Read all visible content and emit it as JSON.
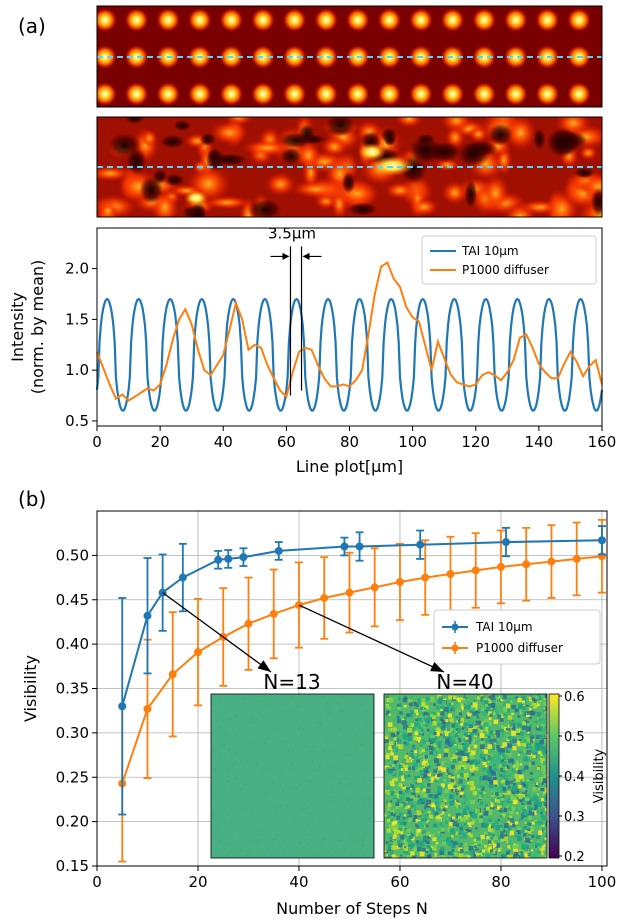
{
  "labels": {
    "a": "(a)",
    "b": "(b)"
  },
  "colors": {
    "tai": "#1f77b4",
    "diffuser": "#ff7f0e",
    "dashed_line": "#4fd8ff",
    "grid": "#b0b0b0"
  },
  "chart_data": [
    {
      "type": "heatmap",
      "panel": "a-top",
      "description_source": "TAI 10µm intensity pattern",
      "rows_of_spots": 3,
      "spots_per_row": 16,
      "colormap": "hot",
      "dashed_line": "middle row"
    },
    {
      "type": "heatmap",
      "panel": "a-middle",
      "colormap": "hot",
      "dashed_line": "middle row",
      "pattern": "random speckle"
    },
    {
      "type": "line",
      "panel": "a-bottom",
      "xlabel": "Line plot[µm]",
      "ylabel": "Intensity\n(norm. by mean)",
      "ylabel_line1": "Intensity",
      "ylabel_line2": "(norm. by mean)",
      "xlim": [
        0,
        160
      ],
      "ylim": [
        0.45,
        2.4
      ],
      "xticks": [
        0,
        20,
        40,
        60,
        80,
        100,
        120,
        140,
        160
      ],
      "yticks": [
        0.5,
        1.0,
        1.5,
        2.0
      ],
      "ytick_labels": [
        "0.5",
        "1.0",
        "1.5",
        "2.0"
      ],
      "legend_position": "top-right",
      "annotation": {
        "text": "3.5µm",
        "x1": 61.3,
        "x2": 64.8,
        "arrow_y": 2.12
      },
      "series": [
        {
          "name": "TAI 10µm",
          "color": "#1f77b4",
          "form": "periodic",
          "period": 10,
          "first_peak": 3.2,
          "peak": 1.7,
          "trough": 0.6,
          "x_range": [
            0,
            160
          ]
        },
        {
          "name": "P1000 diffuser",
          "color": "#ff7f0e",
          "points": [
            [
              0,
              1.18
            ],
            [
              2,
              1.02
            ],
            [
              4,
              0.86
            ],
            [
              6,
              0.72
            ],
            [
              8,
              0.76
            ],
            [
              10,
              0.7
            ],
            [
              12,
              0.74
            ],
            [
              14,
              0.78
            ],
            [
              16,
              0.82
            ],
            [
              18,
              0.8
            ],
            [
              20,
              0.86
            ],
            [
              22,
              1.05
            ],
            [
              24,
              1.3
            ],
            [
              26,
              1.5
            ],
            [
              28,
              1.6
            ],
            [
              30,
              1.45
            ],
            [
              32,
              1.2
            ],
            [
              34,
              1.0
            ],
            [
              36,
              0.95
            ],
            [
              38,
              1.05
            ],
            [
              40,
              1.15
            ],
            [
              42,
              1.4
            ],
            [
              44,
              1.66
            ],
            [
              46,
              1.5
            ],
            [
              48,
              1.2
            ],
            [
              50,
              1.25
            ],
            [
              52,
              1.22
            ],
            [
              54,
              1.05
            ],
            [
              56,
              0.92
            ],
            [
              58,
              0.8
            ],
            [
              60,
              0.74
            ],
            [
              62,
              0.98
            ],
            [
              64,
              1.18
            ],
            [
              66,
              1.22
            ],
            [
              68,
              1.2
            ],
            [
              70,
              1.05
            ],
            [
              72,
              0.92
            ],
            [
              74,
              0.84
            ],
            [
              76,
              0.84
            ],
            [
              78,
              0.86
            ],
            [
              80,
              0.84
            ],
            [
              82,
              0.9
            ],
            [
              84,
              1.0
            ],
            [
              86,
              1.35
            ],
            [
              88,
              1.75
            ],
            [
              90,
              2.02
            ],
            [
              92,
              2.06
            ],
            [
              94,
              1.9
            ],
            [
              96,
              1.82
            ],
            [
              98,
              1.62
            ],
            [
              100,
              1.52
            ],
            [
              102,
              1.48
            ],
            [
              104,
              1.24
            ],
            [
              106,
              1.0
            ],
            [
              108,
              1.28
            ],
            [
              110,
              1.12
            ],
            [
              112,
              0.96
            ],
            [
              114,
              0.88
            ],
            [
              116,
              0.86
            ],
            [
              118,
              0.84
            ],
            [
              120,
              0.86
            ],
            [
              122,
              0.95
            ],
            [
              124,
              0.98
            ],
            [
              126,
              0.95
            ],
            [
              128,
              0.9
            ],
            [
              130,
              0.98
            ],
            [
              132,
              1.1
            ],
            [
              134,
              1.32
            ],
            [
              136,
              1.35
            ],
            [
              138,
              1.22
            ],
            [
              140,
              1.06
            ],
            [
              142,
              0.98
            ],
            [
              144,
              0.92
            ],
            [
              146,
              0.92
            ],
            [
              148,
              1.06
            ],
            [
              150,
              1.18
            ],
            [
              152,
              1.08
            ],
            [
              154,
              0.94
            ],
            [
              156,
              1.04
            ],
            [
              158,
              1.1
            ],
            [
              160,
              0.86
            ]
          ]
        }
      ]
    },
    {
      "type": "line",
      "panel": "b",
      "xlabel": "Number of Steps N",
      "ylabel": "Visibility",
      "xlim": [
        0,
        101
      ],
      "ylim": [
        0.15,
        0.55
      ],
      "xticks": [
        0,
        20,
        40,
        60,
        80,
        100
      ],
      "yticks": [
        0.15,
        0.2,
        0.25,
        0.3,
        0.35,
        0.4,
        0.45,
        0.5
      ],
      "ytick_labels": [
        "0.15",
        "0.20",
        "0.25",
        "0.30",
        "0.35",
        "0.40",
        "0.45",
        "0.50"
      ],
      "grid": true,
      "legend_position": "center-right",
      "error_bars": true,
      "series": [
        {
          "name": "TAI 10µm",
          "color": "#1f77b4",
          "x": [
            5,
            10,
            13,
            17,
            24,
            26,
            29,
            36,
            49,
            52,
            64,
            81,
            100
          ],
          "y": [
            0.33,
            0.432,
            0.458,
            0.475,
            0.495,
            0.496,
            0.498,
            0.505,
            0.51,
            0.51,
            0.512,
            0.515,
            0.517
          ],
          "err": [
            0.122,
            0.065,
            0.043,
            0.038,
            0.01,
            0.01,
            0.01,
            0.01,
            0.01,
            0.016,
            0.016,
            0.016,
            0.016
          ]
        },
        {
          "name": "P1000 diffuser",
          "color": "#ff7f0e",
          "x": [
            5,
            10,
            15,
            20,
            25,
            30,
            35,
            40,
            45,
            50,
            55,
            60,
            65,
            70,
            75,
            80,
            85,
            90,
            95,
            100
          ],
          "y": [
            0.243,
            0.327,
            0.366,
            0.391,
            0.408,
            0.423,
            0.434,
            0.444,
            0.452,
            0.458,
            0.464,
            0.47,
            0.475,
            0.479,
            0.483,
            0.487,
            0.49,
            0.493,
            0.496,
            0.499
          ],
          "err": [
            0.088,
            0.078,
            0.07,
            0.06,
            0.055,
            0.052,
            0.05,
            0.048,
            0.046,
            0.045,
            0.044,
            0.043,
            0.042,
            0.042,
            0.042,
            0.041,
            0.041,
            0.041,
            0.041,
            0.041
          ]
        }
      ],
      "insets": [
        {
          "title": "N=13",
          "pattern": "uniform teal-green",
          "arrow_from_x": 13,
          "arrow_from_y": 0.458
        },
        {
          "title": "N=40",
          "pattern": "noisy green",
          "arrow_from_x": 40,
          "arrow_from_y": 0.444
        }
      ],
      "colorbar": {
        "label": "Visibility",
        "ticks": [
          "0.6",
          "0.5",
          "0.4",
          "0.3",
          "0.2"
        ],
        "colormap": "viridis",
        "range": [
          0.2,
          0.6
        ]
      }
    }
  ]
}
